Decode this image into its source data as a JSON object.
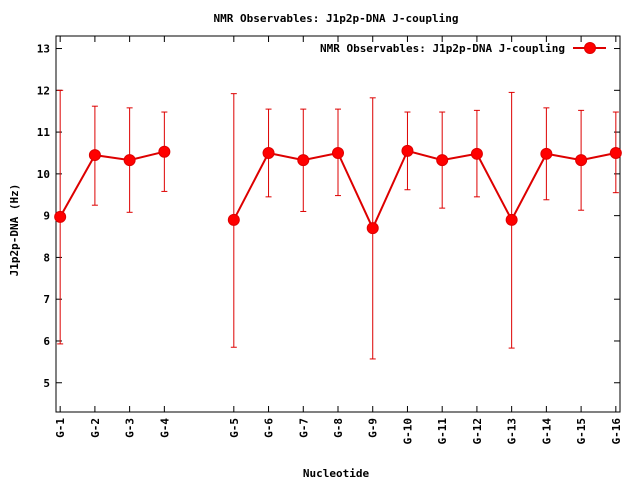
{
  "chart_data": {
    "type": "line",
    "title": "NMR Observables: J1p2p-DNA J-coupling",
    "xlabel": "Nucleotide",
    "ylabel": "J1p2p-DNA (Hz)",
    "ylim": [
      4.3,
      13.3
    ],
    "yticks": [
      5,
      6,
      7,
      8,
      9,
      10,
      11,
      12,
      13
    ],
    "xlim": [
      0.9,
      16.1
    ],
    "legend_position": "top-right",
    "grid": false,
    "series": [
      {
        "name": "NMR Observables: J1p2p-DNA J-coupling",
        "color": "#dd0000",
        "points": [
          {
            "label": "G-1",
            "x": 1,
            "y": 8.97,
            "err_low": 5.93,
            "err_high": 12.0
          },
          {
            "label": "G-2",
            "x": 2,
            "y": 10.45,
            "err_low": 9.25,
            "err_high": 11.62
          },
          {
            "label": "G-3",
            "x": 3,
            "y": 10.33,
            "err_low": 9.08,
            "err_high": 11.58
          },
          {
            "label": "G-4",
            "x": 4,
            "y": 10.53,
            "err_low": 9.58,
            "err_high": 11.48
          },
          {
            "label": "G-5",
            "x": 6,
            "y": 8.9,
            "err_low": 5.85,
            "err_high": 11.92
          },
          {
            "label": "G-6",
            "x": 7,
            "y": 10.5,
            "err_low": 9.45,
            "err_high": 11.55
          },
          {
            "label": "G-7",
            "x": 8,
            "y": 10.33,
            "err_low": 9.1,
            "err_high": 11.55
          },
          {
            "label": "G-8",
            "x": 9,
            "y": 10.5,
            "err_low": 9.48,
            "err_high": 11.55
          },
          {
            "label": "G-9",
            "x": 10,
            "y": 8.7,
            "err_low": 5.57,
            "err_high": 11.82
          },
          {
            "label": "G-10",
            "x": 11,
            "y": 10.55,
            "err_low": 9.62,
            "err_high": 11.48
          },
          {
            "label": "G-11",
            "x": 12,
            "y": 10.33,
            "err_low": 9.18,
            "err_high": 11.48
          },
          {
            "label": "G-12",
            "x": 13,
            "y": 10.48,
            "err_low": 9.45,
            "err_high": 11.52
          },
          {
            "label": "G-13",
            "x": 14,
            "y": 8.9,
            "err_low": 5.83,
            "err_high": 11.95
          },
          {
            "label": "G-14",
            "x": 15,
            "y": 10.48,
            "err_low": 9.38,
            "err_high": 11.58
          },
          {
            "label": "G-15",
            "x": 16,
            "y": 10.33,
            "err_low": 9.13,
            "err_high": 11.52
          },
          {
            "label": "G-16",
            "x": 17,
            "y": 10.5,
            "err_low": 9.55,
            "err_high": 11.48
          }
        ]
      }
    ]
  }
}
